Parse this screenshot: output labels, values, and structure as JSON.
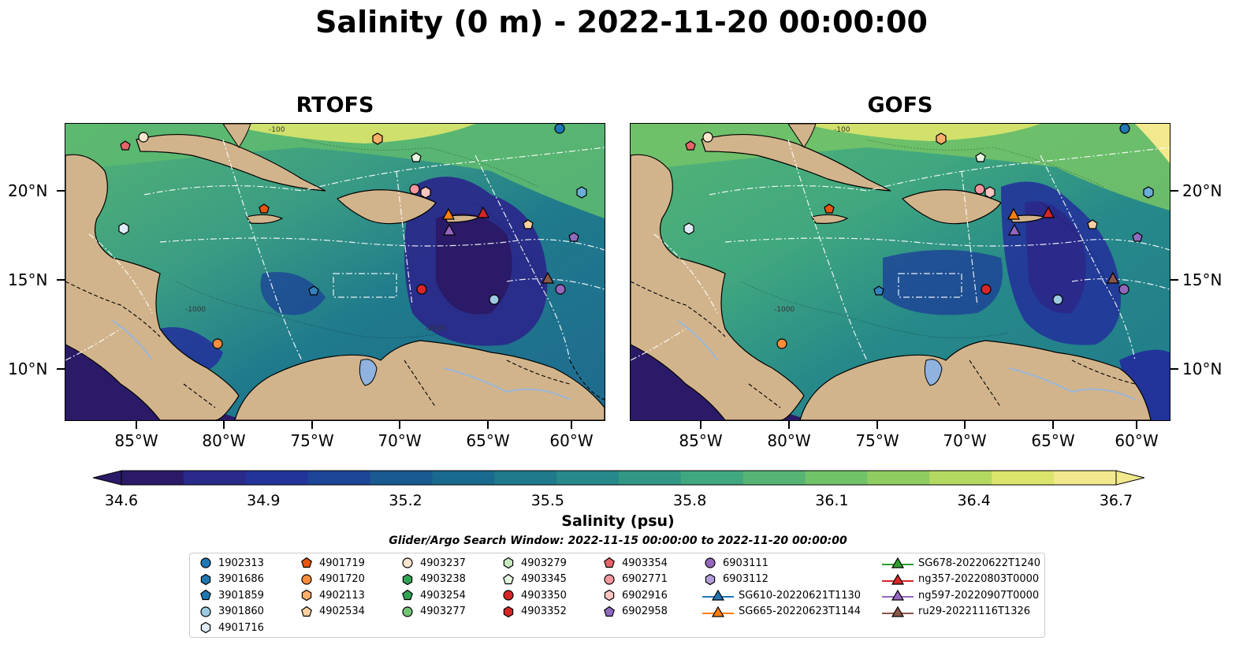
{
  "title": "Salinity (0 m) - 2022-11-20 00:00:00",
  "panels": [
    {
      "title": "RTOFS"
    },
    {
      "title": "GOFS"
    }
  ],
  "lat_labels": [
    "20°N",
    "15°N",
    "10°N"
  ],
  "lon_labels": [
    "85°W",
    "80°W",
    "75°W",
    "70°W",
    "65°W",
    "60°W"
  ],
  "contour_labels": [
    "-100",
    "-1000",
    "-1000",
    "-2000"
  ],
  "colorbar": {
    "label": "Salinity (psu)",
    "min": 34.6,
    "max": 36.7,
    "ticks": [
      "34.6",
      "34.9",
      "35.2",
      "35.5",
      "35.8",
      "36.1",
      "36.4",
      "36.7"
    ],
    "colors": [
      "#2a1a67",
      "#2a2a8a",
      "#22349a",
      "#1d4596",
      "#195991",
      "#1a6a8f",
      "#1f7a8c",
      "#278989",
      "#329885",
      "#40a77f",
      "#56b574",
      "#72c268",
      "#90cd60",
      "#b4d962",
      "#dbe46c",
      "#f2e98e"
    ]
  },
  "map_colors": {
    "land": "#d2b48c",
    "lake": "#8fb3de",
    "river": "#9ab7d6"
  },
  "search_window": "Glider/Argo Search Window: 2022-11-15 00:00:00 to 2022-11-20 00:00:00",
  "legend": {
    "columns": [
      [
        {
          "label": "1902313",
          "marker": "circle",
          "color": "#1f77b4"
        },
        {
          "label": "3901686",
          "marker": "hexagon",
          "color": "#1f77b4"
        },
        {
          "label": "3901859",
          "marker": "pentagon",
          "color": "#1f77b4"
        },
        {
          "label": "3901860",
          "marker": "circle",
          "color": "#9ecae1"
        },
        {
          "label": "4901716",
          "marker": "hexagon",
          "color": "#deebf7"
        }
      ],
      [
        {
          "label": "4901719",
          "marker": "pentagon",
          "color": "#e6550d"
        },
        {
          "label": "4901720",
          "marker": "circle",
          "color": "#fd8d3c"
        },
        {
          "label": "4902113",
          "marker": "hexagon",
          "color": "#fdae6b"
        },
        {
          "label": "4902534",
          "marker": "pentagon",
          "color": "#fdd0a2"
        }
      ],
      [
        {
          "label": "4903237",
          "marker": "circle",
          "color": "#fee6ce"
        },
        {
          "label": "4903238",
          "marker": "hexagon",
          "color": "#31a354"
        },
        {
          "label": "4903254",
          "marker": "pentagon",
          "color": "#31a354"
        },
        {
          "label": "4903277",
          "marker": "circle",
          "color": "#74c476"
        }
      ],
      [
        {
          "label": "4903279",
          "marker": "hexagon",
          "color": "#c7e9c0"
        },
        {
          "label": "4903345",
          "marker": "pentagon",
          "color": "#e5f5e0"
        },
        {
          "label": "4903350",
          "marker": "circle",
          "color": "#d62728"
        },
        {
          "label": "4903352",
          "marker": "hexagon",
          "color": "#d62728"
        }
      ],
      [
        {
          "label": "4903354",
          "marker": "pentagon",
          "color": "#e7646a"
        },
        {
          "label": "6902771",
          "marker": "circle",
          "color": "#f7969e"
        },
        {
          "label": "6902916",
          "marker": "hexagon",
          "color": "#fcc5c0"
        },
        {
          "label": "6902958",
          "marker": "pentagon",
          "color": "#8e6bbf"
        }
      ],
      [
        {
          "label": "6903111",
          "marker": "circle",
          "color": "#9467bd"
        },
        {
          "label": "6903112",
          "marker": "hexagon",
          "color": "#b39ddb"
        },
        {
          "label": "SG610-20220621T1130",
          "marker": "triangle-line",
          "color": "#1f77b4"
        },
        {
          "label": "SG665-20220623T1144",
          "marker": "triangle-line",
          "color": "#ff7f0e"
        }
      ],
      [
        {
          "label": "SG678-20220622T1240",
          "marker": "triangle-line",
          "color": "#2ca02c"
        },
        {
          "label": "ng357-20220803T0000",
          "marker": "triangle-line",
          "color": "#d62728"
        },
        {
          "label": "ng597-20220907T0000",
          "marker": "triangle-line",
          "color": "#9467bd"
        },
        {
          "label": "ru29-20221116T1326",
          "marker": "triangle-line",
          "color": "#8c564b"
        }
      ]
    ]
  }
}
